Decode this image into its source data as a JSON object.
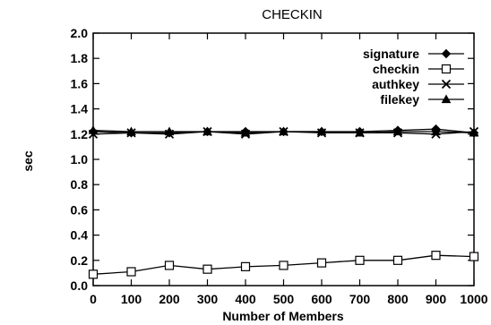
{
  "chart_data": {
    "type": "line",
    "title": "CHECKIN",
    "xlabel": "Number of Members",
    "ylabel": "sec",
    "x": [
      0,
      100,
      200,
      300,
      400,
      500,
      600,
      700,
      800,
      900,
      1000
    ],
    "xticks": [
      0,
      100,
      200,
      300,
      400,
      500,
      600,
      700,
      800,
      900,
      1000
    ],
    "yticks": [
      0.0,
      0.2,
      0.4,
      0.6,
      0.8,
      1.0,
      1.2,
      1.4,
      1.6,
      1.8,
      2.0
    ],
    "xlim": [
      0,
      1000
    ],
    "ylim": [
      0,
      2.0
    ],
    "grid": false,
    "legend_position": "top-right",
    "series": [
      {
        "name": "signature",
        "marker": "filled-diamond",
        "values": [
          1.22,
          1.21,
          1.21,
          1.22,
          1.22,
          1.22,
          1.22,
          1.22,
          1.23,
          1.24,
          1.21
        ]
      },
      {
        "name": "checkin",
        "marker": "open-square",
        "values": [
          0.09,
          0.11,
          0.16,
          0.13,
          0.15,
          0.16,
          0.18,
          0.2,
          0.2,
          0.24,
          0.23
        ]
      },
      {
        "name": "authkey",
        "marker": "cross",
        "values": [
          1.2,
          1.21,
          1.2,
          1.22,
          1.2,
          1.22,
          1.21,
          1.21,
          1.21,
          1.2,
          1.22
        ]
      },
      {
        "name": "filekey",
        "marker": "filled-triangle",
        "values": [
          1.23,
          1.22,
          1.22,
          1.22,
          1.21,
          1.22,
          1.22,
          1.21,
          1.22,
          1.22,
          1.21
        ]
      }
    ]
  }
}
